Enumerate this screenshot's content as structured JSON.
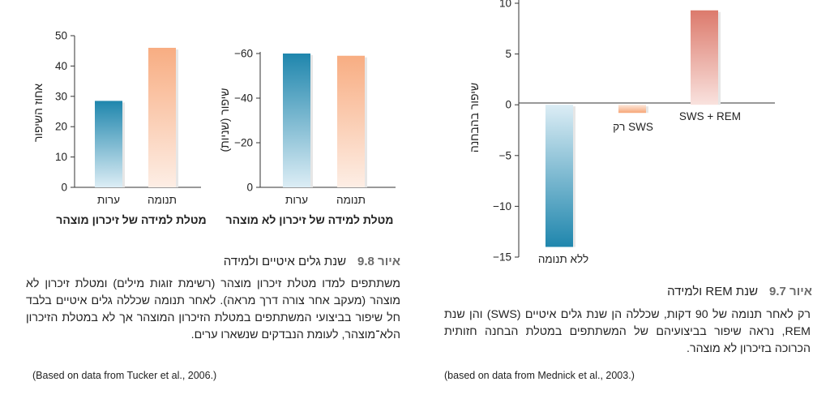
{
  "chart_data": [
    {
      "type": "bar",
      "categories": [
        "תנומה",
        "ערות"
      ],
      "values": [
        46,
        28.5
      ],
      "ylabel": "אחוז השיפור",
      "ylim": [
        0,
        50
      ],
      "yticks": [
        0,
        10,
        20,
        30,
        40,
        50
      ],
      "ytick_labels": [
        "0",
        "10",
        "20",
        "30",
        "40",
        "50"
      ],
      "subtitle": "מטלת למידה של זיכרון מוצהר",
      "colors": [
        "#f4a77a",
        "#2a8db1"
      ],
      "grid": false
    },
    {
      "type": "bar",
      "categories": [
        "תנומה",
        "ערות"
      ],
      "values": [
        -59,
        -60
      ],
      "ylabel": "שיפור (שניות)",
      "ylim": [
        0,
        -60
      ],
      "yticks": [
        0,
        -20,
        -40,
        -60
      ],
      "ytick_labels": [
        "0",
        "−20",
        "−40",
        "−60"
      ],
      "subtitle": "מטלת למידה של זיכרון לא מוצהר",
      "colors": [
        "#f4a77a",
        "#2a8db1"
      ],
      "grid": false
    },
    {
      "type": "bar",
      "categories": [
        "ללא תנומה",
        "רק SWS",
        "SWS + REM"
      ],
      "values": [
        -14,
        -0.8,
        9.3
      ],
      "ylabel": "שיפור בהבחנה",
      "ylim": [
        -15,
        10
      ],
      "yticks": [
        -15,
        -10,
        -5,
        0,
        5,
        10
      ],
      "ytick_labels": [
        "−15",
        "−10",
        "−5",
        "0",
        "5",
        "10"
      ],
      "colors": [
        "#1f86ad",
        "#f6a678",
        "#dc7a6c"
      ],
      "grid": false
    }
  ],
  "fig98": {
    "number": "איור 9.8",
    "title": "שנת גלים איטיים ולמידה",
    "body": "משתתפים למדו מטלת זיכרון מוצהר (רשימת זוגות מילים) ומטלת זיכרון לא מוצהר (מעקב אחר צורה דרך מראה). לאחר תנומה שכללה גלים איטיים בלבד חל שיפור בביצועי המשתתפים במטלת הזיכרון המוצהר אך לא במטלת הזיכרון הלא־מוצהר, לעומת הנבדקים שנשארו ערים.",
    "source": "(Based on data from Tucker et al., 2006.)"
  },
  "fig97": {
    "number": "איור 9.7",
    "title": "שנת REM ולמידה",
    "body": "רק לאחר תנומה של 90 דקות, שכללה הן שנת גלים איטיים (SWS) והן שנת REM, נראה שיפור בביצועיהם של המשתתפים במטלת הבחנה חזותית הכרוכה בזיכרון לא מוצהר.",
    "source": "(based on data from Mednick et al., 2003.)"
  }
}
